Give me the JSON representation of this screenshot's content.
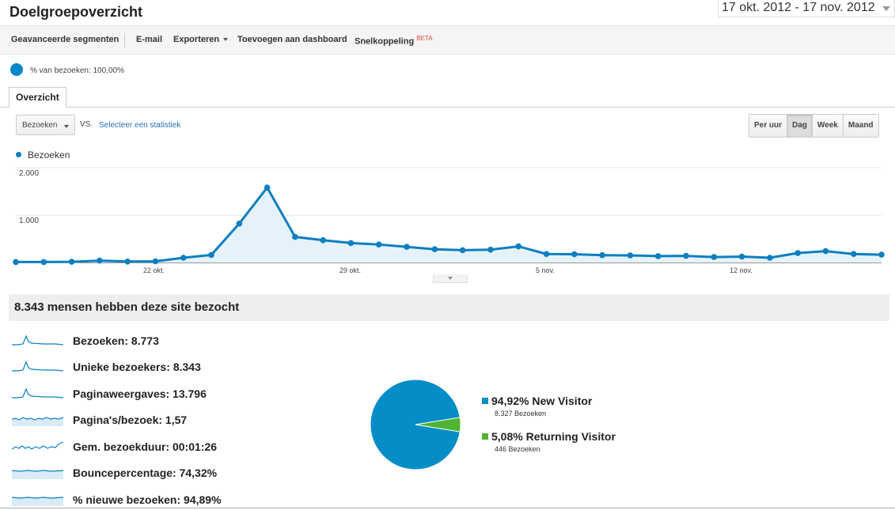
{
  "header": {
    "title": "Doelgroepoverzicht",
    "date_range": "17 okt. 2012 - 17 nov. 2012"
  },
  "toolbar": {
    "advanced_segments": "Geavanceerde segmenten",
    "email": "E-mail",
    "export": "Exporteren",
    "add_to_dashboard": "Toevoegen aan dashboard",
    "shortcut": "Snelkoppeling",
    "beta": "BETA"
  },
  "segment": {
    "label": "% van bezoeken: 100,00%"
  },
  "tabs": {
    "overview": "Overzicht"
  },
  "controls": {
    "metric": "Bezoeken",
    "vs": "VS.",
    "select_stat": "Selecteer een statistiek",
    "periods": [
      "Per uur",
      "Dag",
      "Week",
      "Maand"
    ],
    "active_period": "Dag"
  },
  "chart_data": {
    "type": "area",
    "legend": "Bezoeken",
    "color": "#0d7fc1",
    "y_ticks": [
      "2.000",
      "1.000"
    ],
    "ylim": [
      0,
      2000
    ],
    "x_tick_labels": [
      "22 okt.",
      "29 okt.",
      "5 nov.",
      "12 nov."
    ],
    "x": [
      "17 okt",
      "18 okt",
      "19 okt",
      "20 okt",
      "21 okt",
      "22 okt",
      "23 okt",
      "24 okt",
      "25 okt",
      "26 okt",
      "27 okt",
      "28 okt",
      "29 okt",
      "30 okt",
      "31 okt",
      "1 nov",
      "2 nov",
      "3 nov",
      "4 nov",
      "5 nov",
      "6 nov",
      "7 nov",
      "8 nov",
      "9 nov",
      "10 nov",
      "11 nov",
      "12 nov",
      "13 nov",
      "14 nov",
      "15 nov",
      "16 nov",
      "17 nov"
    ],
    "values": [
      10,
      10,
      15,
      40,
      20,
      25,
      100,
      160,
      820,
      1580,
      540,
      470,
      410,
      380,
      330,
      280,
      260,
      270,
      340,
      180,
      175,
      155,
      150,
      135,
      140,
      115,
      125,
      100,
      200,
      240,
      180,
      165
    ]
  },
  "summary": {
    "headline": "8.343 mensen hebben deze site bezocht",
    "metrics": [
      {
        "label": "Bezoeken: 8.773",
        "spark": "visits"
      },
      {
        "label": "Unieke bezoekers: 8.343",
        "spark": "visits"
      },
      {
        "label": "Paginaweergaves: 13.796",
        "spark": "visits"
      },
      {
        "label": "Pagina's/bezoek: 1,57",
        "spark": "flat-wavy"
      },
      {
        "label": "Gem. bezoekduur: 00:01:26",
        "spark": "wavy"
      },
      {
        "label": "Bouncepercentage: 74,32%",
        "spark": "flat"
      },
      {
        "label": "% nieuwe bezoeken: 94,89%",
        "spark": "flat"
      }
    ]
  },
  "pie": {
    "slices": [
      {
        "label": "94,92% New Visitor",
        "sub": "8.327 Bezoeken",
        "value": 94.92,
        "color": "#058dc7"
      },
      {
        "label": "5,08% Returning Visitor",
        "sub": "446 Bezoeken",
        "value": 5.08,
        "color": "#50b432"
      }
    ]
  }
}
